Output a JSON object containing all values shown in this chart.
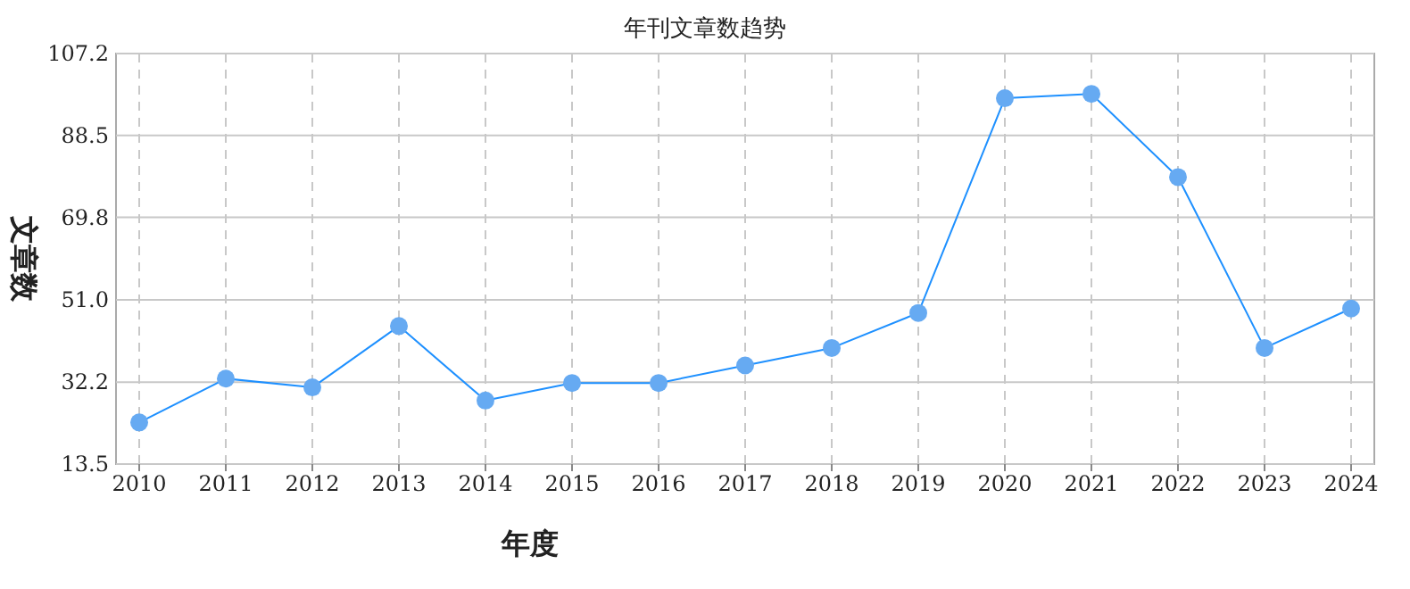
{
  "chart_data": {
    "type": "line",
    "title": "年刊文章数趋势",
    "xlabel": "年度",
    "ylabel": "文章数",
    "categories": [
      "2010",
      "2011",
      "2012",
      "2013",
      "2014",
      "2015",
      "2016",
      "2017",
      "2018",
      "2019",
      "2020",
      "2021",
      "2022",
      "2023",
      "2024"
    ],
    "series": [
      {
        "color": "#1e90ff",
        "values": [
          23,
          33,
          31,
          45,
          28,
          32,
          32,
          36,
          40,
          48,
          97,
          98,
          79,
          40,
          49
        ]
      }
    ],
    "ylim": [
      13.5,
      107.2
    ],
    "yticks": [
      13.5,
      32.2,
      {
        "value": 51,
        "label": "51.0"
      },
      69.8,
      88.5,
      107.2
    ],
    "grid": true,
    "marker": "circle",
    "line_style": "solid"
  }
}
